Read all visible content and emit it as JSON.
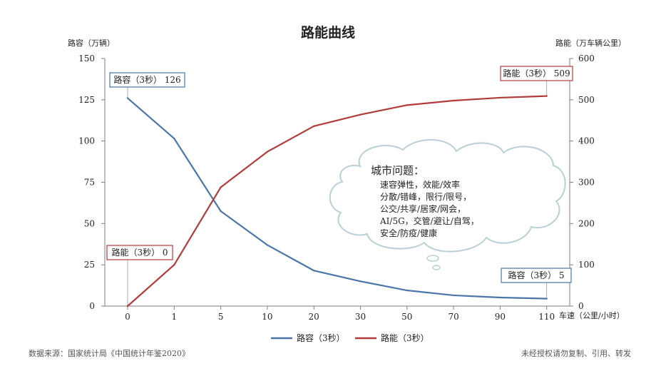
{
  "chart_data": {
    "type": "line",
    "title": "路能曲线",
    "y_left_label": "路容（万辆）",
    "y_right_label": "路能（万车辆公里）",
    "x_label": "车速（公里/小时）",
    "categories": [
      "0",
      "1",
      "5",
      "10",
      "20",
      "30",
      "50",
      "70",
      "90",
      "110"
    ],
    "y_left_ticks": [
      "0",
      "25",
      "50",
      "75",
      "100",
      "125",
      "150"
    ],
    "y_right_ticks": [
      "0",
      "100",
      "200",
      "300",
      "400",
      "500",
      "600"
    ],
    "y_left_range": [
      0,
      150
    ],
    "y_right_range": [
      0,
      600
    ],
    "grid": false,
    "legend_position": "bottom",
    "series": [
      {
        "name": "路容（3秒）",
        "axis": "left",
        "color": "#4a76a8",
        "values": [
          126,
          101.5,
          57.5,
          37,
          21.5,
          15,
          9.5,
          6.5,
          5.2,
          4.5
        ]
      },
      {
        "name": "路能（3秒）",
        "axis": "right",
        "color": "#b23b3b",
        "values": [
          0,
          100,
          288,
          374,
          436,
          464,
          487,
          498,
          505,
          509
        ]
      }
    ],
    "annotations": [
      {
        "text": "路容（3秒） 126",
        "series": 0,
        "point": 0,
        "color": "#4a76a8"
      },
      {
        "text": "路能（3秒） 509",
        "series": 1,
        "point": 9,
        "color": "#b23b3b"
      },
      {
        "text": "路能（3秒） 0",
        "series": 1,
        "point": 0,
        "color": "#b23b3b"
      },
      {
        "text": "路容（3秒） 5",
        "series": 0,
        "point": 9,
        "color": "#4a76a8"
      }
    ]
  },
  "callout": {
    "title": "城市问题：",
    "lines": [
      "速容弹性，效能/效率",
      "分散/错峰，限行/限号，",
      "公交/共享/居家/网会，",
      "AI/5G，交管/避让/自驾，",
      "安全/防疫/健康"
    ]
  },
  "footer": {
    "source": "数据来源：国家统计局《中国统计年鉴2020》",
    "copyright": "未经授权请勿复制、引用、转发"
  }
}
